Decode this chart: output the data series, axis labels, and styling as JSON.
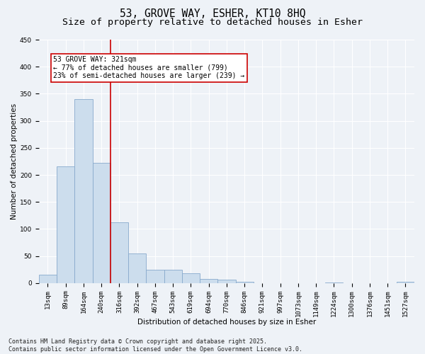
{
  "title_line1": "53, GROVE WAY, ESHER, KT10 8HQ",
  "title_line2": "Size of property relative to detached houses in Esher",
  "xlabel": "Distribution of detached houses by size in Esher",
  "ylabel": "Number of detached properties",
  "bar_labels": [
    "13sqm",
    "89sqm",
    "164sqm",
    "240sqm",
    "316sqm",
    "392sqm",
    "467sqm",
    "543sqm",
    "619sqm",
    "694sqm",
    "770sqm",
    "846sqm",
    "921sqm",
    "997sqm",
    "1073sqm",
    "1149sqm",
    "1224sqm",
    "1300sqm",
    "1376sqm",
    "1451sqm",
    "1527sqm"
  ],
  "bar_values": [
    15,
    216,
    340,
    222,
    113,
    55,
    25,
    25,
    18,
    8,
    6,
    2,
    0,
    0,
    0,
    0,
    1,
    0,
    0,
    0,
    2
  ],
  "bar_color": "#ccdded",
  "bar_edge_color": "#88aacc",
  "ylim": [
    0,
    450
  ],
  "yticks": [
    0,
    50,
    100,
    150,
    200,
    250,
    300,
    350,
    400,
    450
  ],
  "vline_x_index": 4,
  "vline_color": "#cc0000",
  "annotation_text": "53 GROVE WAY: 321sqm\n← 77% of detached houses are smaller (799)\n23% of semi-detached houses are larger (239) →",
  "annotation_box_color": "#ffffff",
  "annotation_box_edge": "#cc0000",
  "background_color": "#eef2f7",
  "plot_bg_color": "#eef2f7",
  "grid_color": "#ffffff",
  "footer_text": "Contains HM Land Registry data © Crown copyright and database right 2025.\nContains public sector information licensed under the Open Government Licence v3.0.",
  "title_fontsize": 10.5,
  "subtitle_fontsize": 9.5,
  "axis_label_fontsize": 7.5,
  "tick_fontsize": 6.5,
  "annotation_fontsize": 7,
  "footer_fontsize": 6
}
